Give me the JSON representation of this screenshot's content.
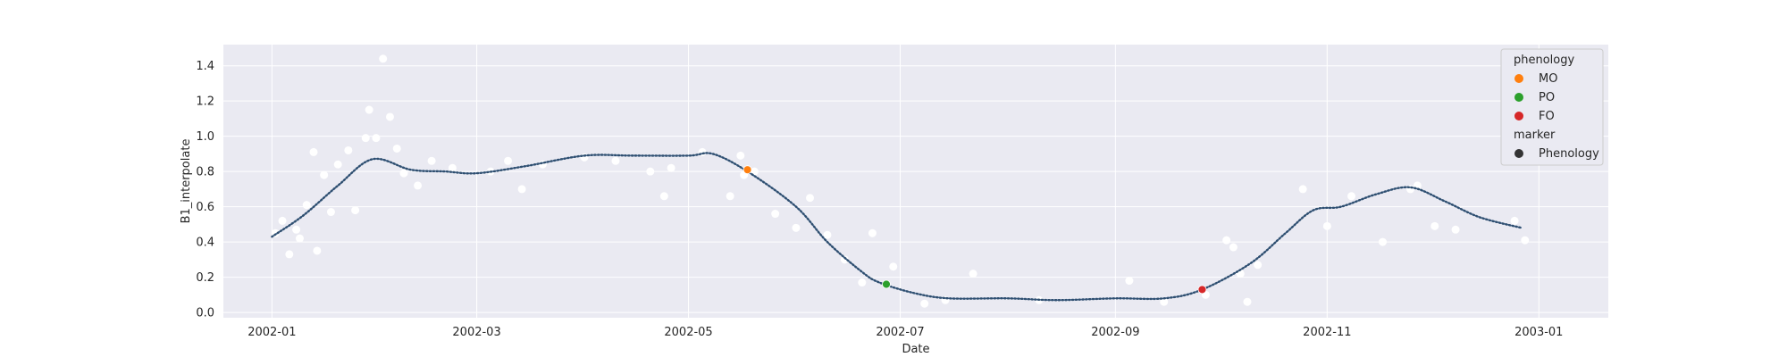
{
  "chart_data": {
    "type": "line",
    "title": "",
    "xlabel": "Date",
    "ylabel": "B1_interpolate",
    "x_axis_type": "date",
    "xlim": [
      "2001-12-18",
      "2003-01-21"
    ],
    "ylim": [
      -0.03,
      1.52
    ],
    "x_ticks": [
      "2002-01",
      "2002-03",
      "2002-05",
      "2002-07",
      "2002-09",
      "2002-11",
      "2003-01"
    ],
    "y_ticks": [
      "0.0",
      "0.2",
      "0.4",
      "0.6",
      "0.8",
      "1.0",
      "1.2",
      "1.4"
    ],
    "grid": true,
    "legend_position": "top-right",
    "colors": {
      "background": "#eaeaf2",
      "grid": "#ffffff",
      "line": "#4c72b0",
      "raw_points": "#ffffff",
      "MO": "#ff7f0e",
      "PO": "#2ca02c",
      "FO": "#d62728",
      "marker_legend": "#333333"
    },
    "interpolated_series": {
      "name": "",
      "x": [
        "2002-01-01",
        "2002-01-10",
        "2002-01-20",
        "2002-01-30",
        "2002-02-10",
        "2002-02-20",
        "2002-03-01",
        "2002-03-15",
        "2002-04-01",
        "2002-04-15",
        "2002-05-01",
        "2002-05-08",
        "2002-05-18",
        "2002-06-01",
        "2002-06-10",
        "2002-06-20",
        "2002-06-25",
        "2002-07-05",
        "2002-07-15",
        "2002-08-01",
        "2002-08-15",
        "2002-09-01",
        "2002-09-15",
        "2002-09-26",
        "2002-10-10",
        "2002-10-20",
        "2002-10-28",
        "2002-11-05",
        "2002-11-15",
        "2002-11-25",
        "2002-12-05",
        "2002-12-15",
        "2002-12-27"
      ],
      "y": [
        0.43,
        0.55,
        0.72,
        0.87,
        0.81,
        0.8,
        0.79,
        0.83,
        0.89,
        0.89,
        0.89,
        0.9,
        0.8,
        0.6,
        0.4,
        0.23,
        0.17,
        0.11,
        0.08,
        0.08,
        0.07,
        0.08,
        0.08,
        0.13,
        0.28,
        0.45,
        0.58,
        0.6,
        0.67,
        0.71,
        0.63,
        0.54,
        0.48
      ]
    },
    "raw_points": {
      "x": [
        "2002-01-02",
        "2002-01-04",
        "2002-01-06",
        "2002-01-08",
        "2002-01-09",
        "2002-01-11",
        "2002-01-13",
        "2002-01-14",
        "2002-01-16",
        "2002-01-18",
        "2002-01-20",
        "2002-01-23",
        "2002-01-25",
        "2002-01-28",
        "2002-01-29",
        "2002-01-31",
        "2002-02-02",
        "2002-02-04",
        "2002-02-06",
        "2002-02-08",
        "2002-02-12",
        "2002-02-16",
        "2002-02-22",
        "2002-03-05",
        "2002-03-10",
        "2002-03-14",
        "2002-03-20",
        "2002-04-01",
        "2002-04-10",
        "2002-04-20",
        "2002-04-24",
        "2002-04-26",
        "2002-05-05",
        "2002-05-13",
        "2002-05-16",
        "2002-05-17",
        "2002-05-20",
        "2002-05-26",
        "2002-06-01",
        "2002-06-05",
        "2002-06-10",
        "2002-06-15",
        "2002-06-20",
        "2002-06-23",
        "2002-06-29",
        "2002-07-08",
        "2002-07-14",
        "2002-07-22",
        "2002-08-10",
        "2002-09-05",
        "2002-09-15",
        "2002-09-27",
        "2002-10-03",
        "2002-10-05",
        "2002-10-07",
        "2002-10-09",
        "2002-10-12",
        "2002-10-25",
        "2002-11-01",
        "2002-11-08",
        "2002-11-17",
        "2002-11-25",
        "2002-11-27",
        "2002-12-02",
        "2002-12-08",
        "2002-12-25",
        "2002-12-28"
      ],
      "y": [
        0.45,
        0.52,
        0.33,
        0.47,
        0.42,
        0.61,
        0.91,
        0.35,
        0.78,
        0.57,
        0.84,
        0.92,
        0.58,
        0.99,
        1.15,
        0.99,
        1.44,
        1.11,
        0.93,
        0.79,
        0.72,
        0.86,
        0.82,
        0.8,
        0.86,
        0.7,
        0.84,
        0.88,
        0.86,
        0.8,
        0.66,
        0.82,
        0.91,
        0.66,
        0.89,
        0.78,
        0.8,
        0.56,
        0.48,
        0.65,
        0.44,
        0.3,
        0.17,
        0.45,
        0.26,
        0.05,
        0.07,
        0.22,
        0.07,
        0.18,
        0.06,
        0.1,
        0.41,
        0.37,
        0.22,
        0.06,
        0.27,
        0.7,
        0.49,
        0.66,
        0.4,
        0.7,
        0.72,
        0.49,
        0.47,
        0.52,
        0.41
      ]
    },
    "phenology_points": [
      {
        "label": "MO",
        "x": "2002-05-18",
        "y": 0.81
      },
      {
        "label": "PO",
        "x": "2002-06-27",
        "y": 0.16
      },
      {
        "label": "FO",
        "x": "2002-09-26",
        "y": 0.13
      }
    ],
    "legend": {
      "title": "phenology",
      "entries": [
        "MO",
        "PO",
        "FO"
      ],
      "marker_title": "marker",
      "marker_entry": "Phenology"
    }
  }
}
